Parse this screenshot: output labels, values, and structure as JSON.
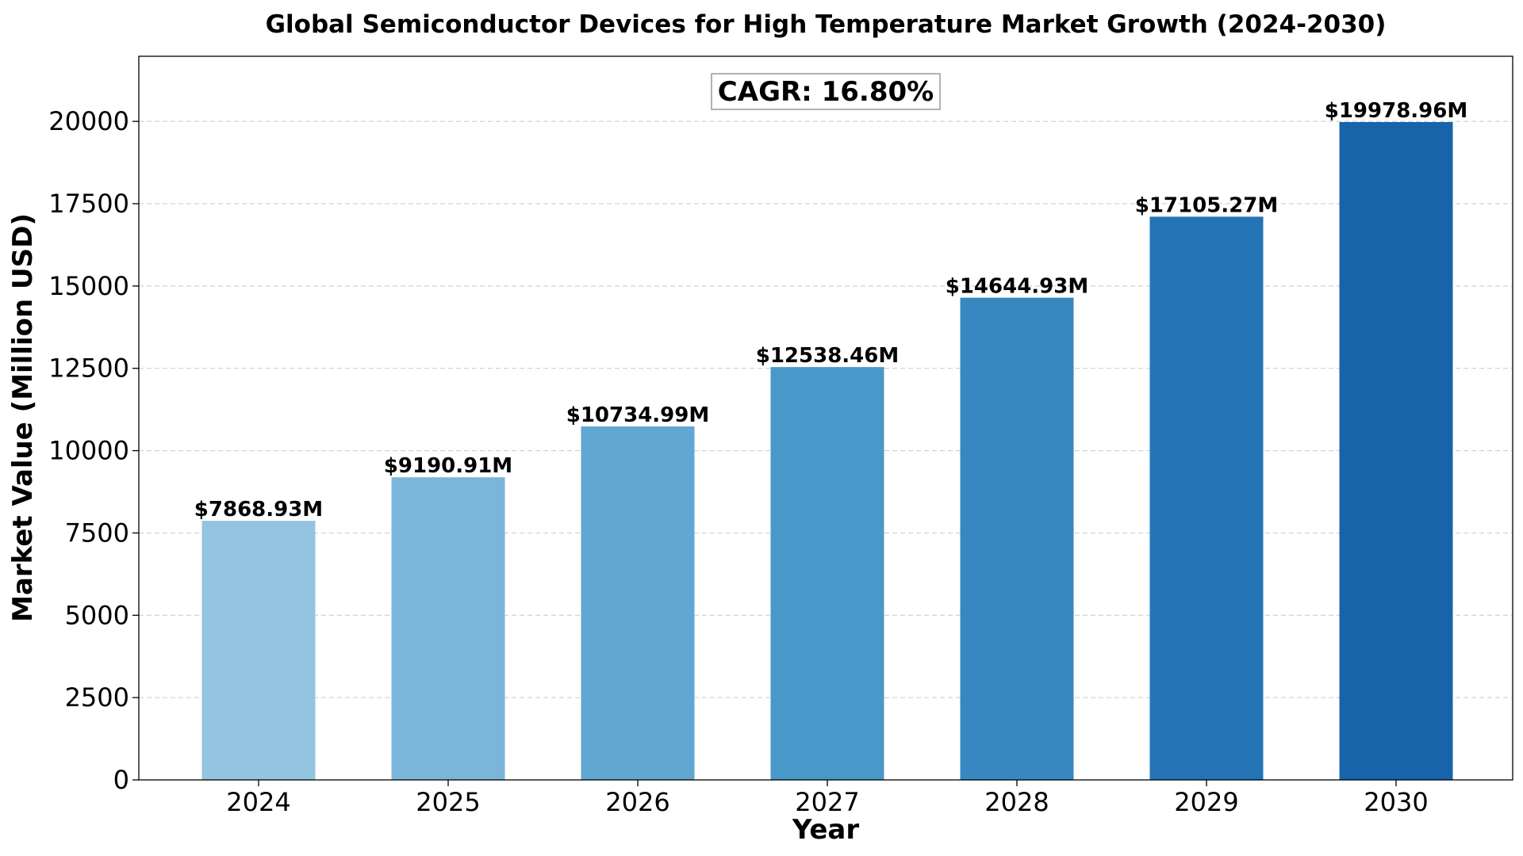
{
  "chart_data": {
    "type": "bar",
    "title": "Global Semiconductor Devices for High Temperature Market Growth (2024-2030)",
    "xlabel": "Year",
    "ylabel": "Market Value (Million USD)",
    "categories": [
      "2024",
      "2025",
      "2026",
      "2027",
      "2028",
      "2029",
      "2030"
    ],
    "values": [
      7868.93,
      9190.91,
      10734.99,
      12538.46,
      14644.93,
      17105.27,
      19978.96
    ],
    "data_labels": [
      "$7868.93M",
      "$9190.91M",
      "$10734.99M",
      "$12538.46M",
      "$14644.93M",
      "$17105.27M",
      "$19978.96M"
    ],
    "ylim": [
      0,
      21977
    ],
    "yticks": [
      0,
      2500,
      5000,
      7500,
      10000,
      12500,
      15000,
      17500,
      20000
    ],
    "grid": "horizontal dashed",
    "bar_colors": [
      "#94c4df",
      "#7ab6d9",
      "#60a7d2",
      "#4a98c9",
      "#3788c0",
      "#2474b6",
      "#1764ab"
    ],
    "annotation": "CAGR: 16.80%"
  }
}
